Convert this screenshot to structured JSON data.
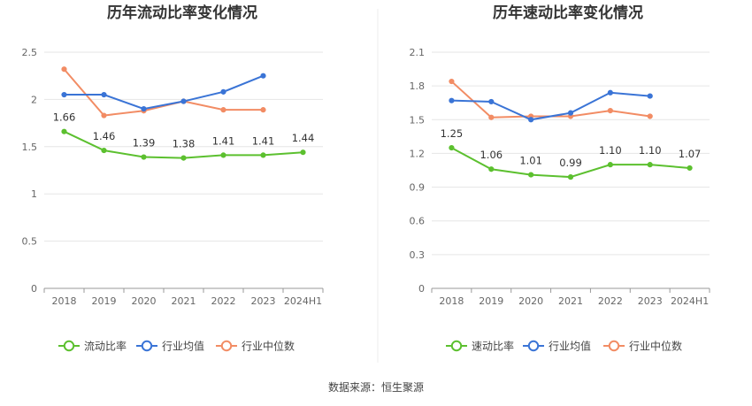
{
  "source": "数据来源：恒生聚源",
  "colors": {
    "main": "#5cc02f",
    "avg": "#3a74d6",
    "median": "#f28c64",
    "grid": "#e6e6e6",
    "axis": "#999999",
    "divider": "#eeeeee"
  },
  "chart_data": [
    {
      "type": "line",
      "title": "历年流动比率变化情况",
      "categories": [
        "2018",
        "2019",
        "2020",
        "2021",
        "2022",
        "2023",
        "2024H1"
      ],
      "ylim": [
        0,
        2.5
      ],
      "yticks": [
        "0",
        "0.5",
        "1",
        "1.5",
        "2",
        "2.5"
      ],
      "ytick_values": [
        0,
        0.5,
        1,
        1.5,
        2,
        2.5
      ],
      "grid": true,
      "legend_position": "bottom",
      "series": [
        {
          "name": "流动比率",
          "role": "main",
          "values": [
            1.66,
            1.46,
            1.39,
            1.38,
            1.41,
            1.41,
            1.44
          ],
          "labels": [
            "1.66",
            "1.46",
            "1.39",
            "1.38",
            "1.41",
            "1.41",
            "1.44"
          ]
        },
        {
          "name": "行业均值",
          "role": "avg",
          "values": [
            2.05,
            2.05,
            1.9,
            1.98,
            2.08,
            2.25,
            null
          ]
        },
        {
          "name": "行业中位数",
          "role": "median",
          "values": [
            2.32,
            1.83,
            1.88,
            1.98,
            1.89,
            1.89,
            null
          ]
        }
      ]
    },
    {
      "type": "line",
      "title": "历年速动比率变化情况",
      "categories": [
        "2018",
        "2019",
        "2020",
        "2021",
        "2022",
        "2023",
        "2024H1"
      ],
      "ylim": [
        0,
        2.1
      ],
      "yticks": [
        "0",
        "0.3",
        "0.6",
        "0.9",
        "1.2",
        "1.5",
        "1.8",
        "2.1"
      ],
      "ytick_values": [
        0,
        0.3,
        0.6,
        0.9,
        1.2,
        1.5,
        1.8,
        2.1
      ],
      "grid": true,
      "legend_position": "bottom",
      "series": [
        {
          "name": "速动比率",
          "role": "main",
          "values": [
            1.25,
            1.06,
            1.01,
            0.99,
            1.1,
            1.1,
            1.07
          ],
          "labels": [
            "1.25",
            "1.06",
            "1.01",
            "0.99",
            "1.10",
            "1.10",
            "1.07"
          ]
        },
        {
          "name": "行业均值",
          "role": "avg",
          "values": [
            1.67,
            1.66,
            1.5,
            1.56,
            1.74,
            1.71,
            null
          ]
        },
        {
          "name": "行业中位数",
          "role": "median",
          "values": [
            1.84,
            1.52,
            1.53,
            1.53,
            1.58,
            1.53,
            null
          ]
        }
      ]
    }
  ]
}
